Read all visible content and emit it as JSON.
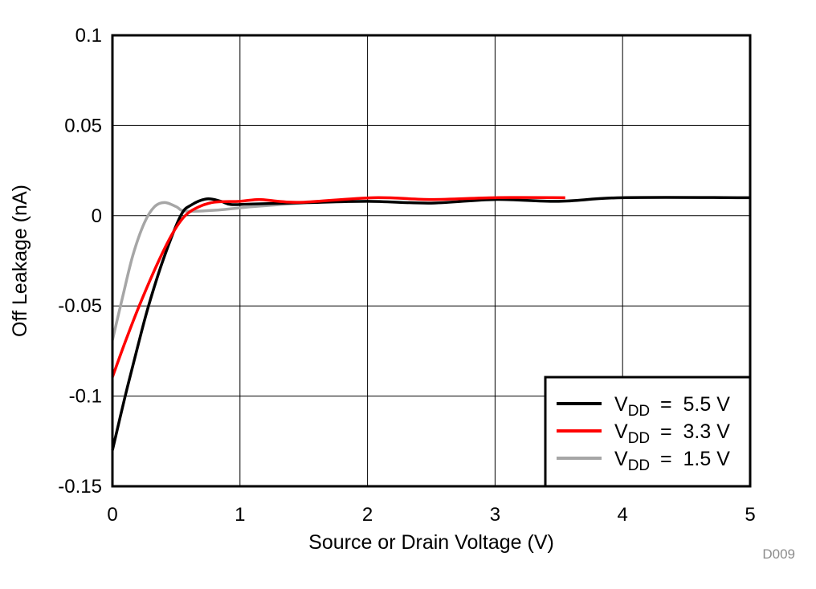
{
  "chart_data": {
    "type": "line",
    "title": "",
    "xlabel": "Source or Drain Voltage (V)",
    "ylabel": "Off Leakage (nA)",
    "xlim": [
      0,
      5
    ],
    "ylim": [
      -0.15,
      0.1
    ],
    "xticks": [
      "0",
      "1",
      "2",
      "3",
      "4",
      "5"
    ],
    "yticks": [
      "0.1",
      "0.05",
      "0",
      "-0.05",
      "-0.1",
      "-0.15"
    ],
    "grid": true,
    "legend_position": "bottom-right",
    "watermark": "D009",
    "series": [
      {
        "name": "VDD =  5.5 V",
        "name_main": "V",
        "name_sub": "DD",
        "name_rest": "=  5.5 V",
        "color": "#000000",
        "x": [
          0,
          0.1,
          0.2,
          0.283,
          0.4,
          0.535,
          0.62,
          0.74,
          0.85,
          0.93,
          1.1,
          1.5,
          2.0,
          2.5,
          3.0,
          3.5,
          4.0,
          5.0
        ],
        "y": [
          -0.13,
          -0.1,
          -0.072,
          -0.05,
          -0.024,
          0.0,
          0.006,
          0.0093,
          0.008,
          0.0062,
          0.0065,
          0.0072,
          0.008,
          0.007,
          0.009,
          0.008,
          0.01,
          0.01
        ]
      },
      {
        "name": "VDD =  3.3 V",
        "name_main": "V",
        "name_sub": "DD",
        "name_rest": "=  3.3 V",
        "color": "#ff0000",
        "x": [
          0,
          0.1,
          0.21,
          0.35,
          0.47,
          0.57,
          0.68,
          0.8,
          1.0,
          1.15,
          1.3,
          1.5,
          2.05,
          2.5,
          3.0,
          3.55
        ],
        "y": [
          -0.0895,
          -0.07,
          -0.05,
          -0.027,
          -0.01,
          0.0,
          0.005,
          0.0075,
          0.008,
          0.009,
          0.008,
          0.0075,
          0.01,
          0.009,
          0.01,
          0.01
        ]
      },
      {
        "name": "VDD =  1.5 V",
        "name_main": "V",
        "name_sub": "DD",
        "name_rest": "=  1.5 V",
        "color": "#a6a6a6",
        "x": [
          0,
          0.08,
          0.16,
          0.25,
          0.33,
          0.41,
          0.5,
          0.57,
          0.8,
          1.1,
          1.53
        ],
        "y": [
          -0.069,
          -0.045,
          -0.022,
          -0.004,
          0.005,
          0.0073,
          0.005,
          0.0026,
          0.003,
          0.005,
          0.0073
        ]
      }
    ]
  }
}
